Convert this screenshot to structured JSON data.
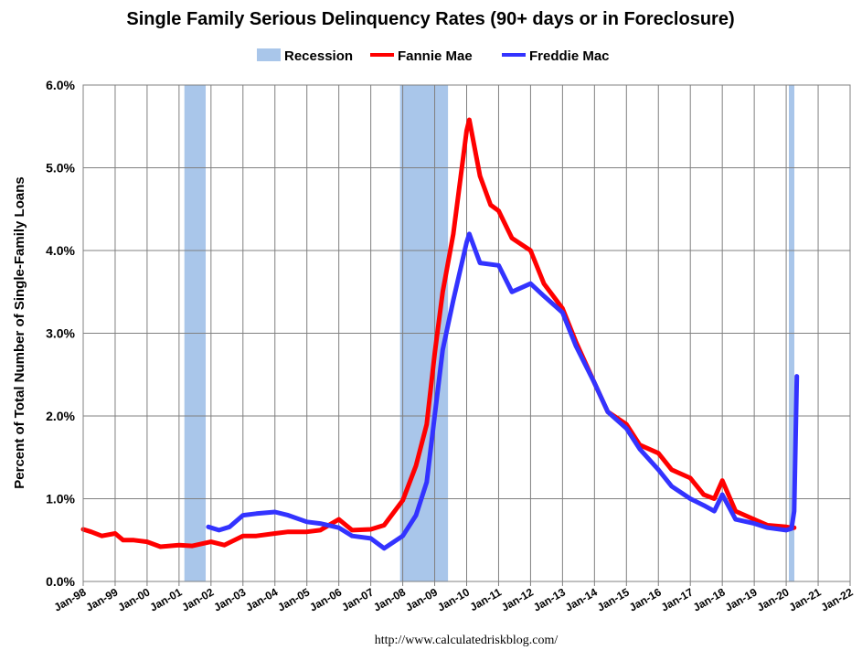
{
  "chart_data": {
    "type": "line",
    "title": "Single Family Serious Delinquency Rates (90+ days or in Foreclosure)",
    "ylabel": "Percent of Total Number of Single-Family Loans",
    "xlabel": "",
    "source": "http://www.calculatedriskblog.com/",
    "ylim": [
      0,
      6
    ],
    "xlim": [
      "1998-01",
      "2022-01"
    ],
    "grid": true,
    "legend_position": "top-center",
    "yticks": [
      "0.0%",
      "1.0%",
      "2.0%",
      "3.0%",
      "4.0%",
      "5.0%",
      "6.0%"
    ],
    "xticks": [
      "Jan-98",
      "Jan-99",
      "Jan-00",
      "Jan-01",
      "Jan-02",
      "Jan-03",
      "Jan-04",
      "Jan-05",
      "Jan-06",
      "Jan-07",
      "Jan-08",
      "Jan-09",
      "Jan-10",
      "Jan-11",
      "Jan-12",
      "Jan-13",
      "Jan-14",
      "Jan-15",
      "Jan-16",
      "Jan-17",
      "Jan-18",
      "Jan-19",
      "Jan-20",
      "Jan-21",
      "Jan-22"
    ],
    "recession_label": "Recession",
    "recessions": [
      {
        "start": "2001-03",
        "end": "2001-11"
      },
      {
        "start": "2007-12",
        "end": "2009-06"
      },
      {
        "start": "2020-02",
        "end": "2020-04"
      }
    ],
    "series": [
      {
        "name": "Fannie Mae",
        "color": "#ff0000",
        "x": [
          "1998-01",
          "1998-04",
          "1998-08",
          "1999-01",
          "1999-04",
          "1999-08",
          "2000-01",
          "2000-06",
          "2001-01",
          "2001-06",
          "2002-01",
          "2002-06",
          "2003-01",
          "2003-06",
          "2004-01",
          "2004-06",
          "2005-01",
          "2005-06",
          "2006-01",
          "2006-06",
          "2007-01",
          "2007-06",
          "2008-01",
          "2008-06",
          "2008-10",
          "2009-01",
          "2009-04",
          "2009-08",
          "2010-01",
          "2010-02",
          "2010-06",
          "2010-10",
          "2011-01",
          "2011-06",
          "2012-01",
          "2012-06",
          "2013-01",
          "2013-06",
          "2014-01",
          "2014-06",
          "2015-01",
          "2015-06",
          "2016-01",
          "2016-06",
          "2017-01",
          "2017-06",
          "2017-10",
          "2018-01",
          "2018-06",
          "2019-01",
          "2019-06",
          "2020-01",
          "2020-03",
          "2020-04"
        ],
        "y": [
          0.63,
          0.6,
          0.55,
          0.58,
          0.5,
          0.5,
          0.48,
          0.42,
          0.44,
          0.43,
          0.48,
          0.44,
          0.55,
          0.55,
          0.58,
          0.6,
          0.6,
          0.62,
          0.75,
          0.62,
          0.63,
          0.68,
          0.98,
          1.4,
          1.9,
          2.75,
          3.5,
          4.2,
          5.45,
          5.58,
          4.9,
          4.55,
          4.48,
          4.15,
          4.0,
          3.6,
          3.3,
          2.9,
          2.4,
          2.05,
          1.9,
          1.65,
          1.55,
          1.35,
          1.25,
          1.05,
          1.0,
          1.22,
          0.85,
          0.75,
          0.68,
          0.66,
          0.65,
          0.65
        ]
      },
      {
        "name": "Freddie Mac",
        "color": "#3333ff",
        "x": [
          "2001-12",
          "2002-04",
          "2002-08",
          "2003-01",
          "2003-06",
          "2004-01",
          "2004-06",
          "2005-01",
          "2005-06",
          "2006-01",
          "2006-06",
          "2007-01",
          "2007-06",
          "2008-01",
          "2008-06",
          "2008-10",
          "2009-01",
          "2009-04",
          "2009-08",
          "2010-01",
          "2010-02",
          "2010-06",
          "2011-01",
          "2011-06",
          "2012-01",
          "2012-06",
          "2013-01",
          "2013-06",
          "2014-01",
          "2014-06",
          "2015-01",
          "2015-06",
          "2016-01",
          "2016-06",
          "2017-01",
          "2017-06",
          "2017-10",
          "2018-01",
          "2018-06",
          "2019-01",
          "2019-06",
          "2020-01",
          "2020-03",
          "2020-04",
          "2020-05"
        ],
        "y": [
          0.66,
          0.62,
          0.66,
          0.8,
          0.82,
          0.84,
          0.8,
          0.72,
          0.7,
          0.65,
          0.55,
          0.52,
          0.4,
          0.55,
          0.8,
          1.2,
          2.0,
          2.8,
          3.4,
          4.1,
          4.2,
          3.85,
          3.82,
          3.5,
          3.6,
          3.45,
          3.25,
          2.85,
          2.4,
          2.05,
          1.85,
          1.6,
          1.35,
          1.15,
          1.0,
          0.92,
          0.85,
          1.05,
          0.75,
          0.7,
          0.65,
          0.62,
          0.64,
          0.85,
          2.48
        ]
      }
    ]
  }
}
